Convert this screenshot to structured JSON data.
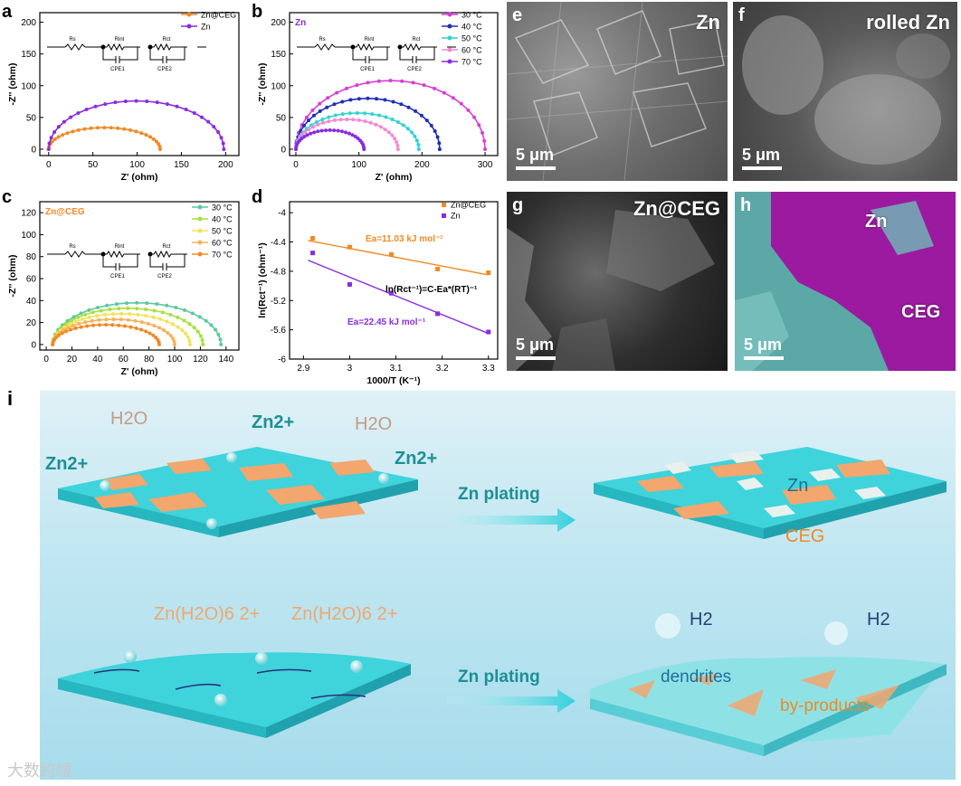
{
  "panels": {
    "a": {
      "label": "a",
      "chart_data": {
        "type": "scatter",
        "xlabel": "Z' (ohm)",
        "ylabel": "-Z'' (ohm)",
        "xlim": [
          -10,
          215
        ],
        "ylim": [
          -10,
          215
        ],
        "xticks": [
          0,
          50,
          100,
          150,
          200
        ],
        "yticks": [
          0,
          50,
          100,
          150,
          200
        ],
        "legend_position": "top-right",
        "series": [
          {
            "name": "Zn@CEG",
            "color": "#f08a24",
            "x_start": 0,
            "x_end": 126,
            "height": 34,
            "tail_x": 127
          },
          {
            "name": "Zn",
            "color": "#8a2be2",
            "x_start": 0,
            "x_end": 198,
            "height": 76,
            "tail_x": 197
          }
        ],
        "circuit": [
          "Rs",
          "Rint",
          "Rct",
          "CPE1",
          "CPE2"
        ]
      }
    },
    "b": {
      "label": "b",
      "chart_data": {
        "type": "scatter",
        "title": "Zn",
        "xlabel": "Z' (ohm)",
        "ylabel": "-Z'' (ohm)",
        "xlim": [
          -10,
          320
        ],
        "ylim": [
          -10,
          215
        ],
        "xticks": [
          0,
          100,
          200,
          300
        ],
        "yticks": [
          0,
          50,
          100,
          150,
          200
        ],
        "legend_position": "top-right",
        "series": [
          {
            "name": "30 °C",
            "color": "#d63fd6",
            "x_start": 0,
            "x_end": 300,
            "height": 108
          },
          {
            "name": "40 °C",
            "color": "#1f2fb5",
            "x_start": 0,
            "x_end": 228,
            "height": 80
          },
          {
            "name": "50 °C",
            "color": "#2fd4d4",
            "x_start": 0,
            "x_end": 195,
            "height": 57
          },
          {
            "name": "60 °C",
            "color": "#f28ad6",
            "x_start": 0,
            "x_end": 162,
            "height": 47
          },
          {
            "name": "70 °C",
            "color": "#8a2be2",
            "x_start": 0,
            "x_end": 108,
            "height": 30
          }
        ],
        "circuit": [
          "Rs",
          "Rint",
          "Rct",
          "CPE1",
          "CPE2"
        ]
      }
    },
    "c": {
      "label": "c",
      "chart_data": {
        "type": "scatter",
        "title": "Zn@CEG",
        "xlabel": "Z' (ohm)",
        "ylabel": "-Z'' (ohm)",
        "xlim": [
          -5,
          150
        ],
        "ylim": [
          -5,
          130
        ],
        "xticks": [
          0,
          20,
          40,
          60,
          80,
          100,
          120,
          140
        ],
        "yticks": [
          0,
          20,
          40,
          60,
          80,
          100,
          120
        ],
        "legend_position": "top-right",
        "series": [
          {
            "name": "30 °C",
            "color": "#5cc9a0",
            "x_start": 5,
            "x_end": 136,
            "height": 38
          },
          {
            "name": "40 °C",
            "color": "#a8e03c",
            "x_start": 5,
            "x_end": 122,
            "height": 33
          },
          {
            "name": "50 °C",
            "color": "#f2e35a",
            "x_start": 5,
            "x_end": 112,
            "height": 28
          },
          {
            "name": "60 °C",
            "color": "#f6b25a",
            "x_start": 5,
            "x_end": 100,
            "height": 23
          },
          {
            "name": "70 °C",
            "color": "#f08a24",
            "x_start": 5,
            "x_end": 88,
            "height": 18
          }
        ],
        "circuit": [
          "Rs",
          "Rint",
          "Rct",
          "CPE1",
          "CPE2"
        ]
      }
    },
    "d": {
      "label": "d",
      "chart_data": {
        "type": "scatter",
        "xlabel": "1000/T (K⁻¹)",
        "ylabel": "ln(Rct⁻¹) (ohm⁻¹)",
        "xlim": [
          2.87,
          3.32
        ],
        "ylim": [
          -6.0,
          -3.85
        ],
        "xticks": [
          2.9,
          3.0,
          3.1,
          3.2,
          3.3
        ],
        "yticks": [
          -4.0,
          -4.4,
          -4.8,
          -5.2,
          -5.6,
          -6.0
        ],
        "legend_position": "top-right",
        "series": [
          {
            "name": "Zn@CEG",
            "color": "#f08a24",
            "x": [
              2.92,
              3.0,
              3.09,
              3.19,
              3.3
            ],
            "y": [
              -4.35,
              -4.47,
              -4.57,
              -4.77,
              -4.82
            ],
            "fit": [
              [
                2.91,
                -4.38
              ],
              [
                3.3,
                -4.85
              ]
            ]
          },
          {
            "name": "Zn",
            "color": "#8a2be2",
            "x": [
              2.92,
              3.0,
              3.09,
              3.19,
              3.3
            ],
            "y": [
              -4.55,
              -4.98,
              -5.1,
              -5.38,
              -5.63
            ],
            "fit": [
              [
                2.91,
                -4.65
              ],
              [
                3.3,
                -5.65
              ]
            ]
          }
        ],
        "annotations": [
          "Ea=11.03 kJ mol⁻¹",
          "ln(Rct⁻¹)=C-Ea*(RT)⁻¹",
          "Ea=22.45 kJ mol⁻¹"
        ]
      }
    },
    "e": {
      "label": "e",
      "name": "Zn",
      "scale": "5 μm"
    },
    "f": {
      "label": "f",
      "name": "rolled Zn",
      "scale": "5 μm"
    },
    "g": {
      "label": "g",
      "name": "Zn@CEG",
      "scale": "5 μm"
    },
    "h": {
      "label": "h",
      "zn": "Zn",
      "ceg": "CEG",
      "scale": "5 μm"
    },
    "i": {
      "label": "i",
      "top_left": {
        "h2o_1": "H2O",
        "h2o_2": "H2O",
        "zn_1": "Zn2+",
        "zn_2": "Zn2+",
        "zn_3": "Zn2+"
      },
      "arrow_top": "Zn plating",
      "top_right": {
        "zn": "Zn",
        "ceg": "CEG"
      },
      "bottom_left": {
        "complex_1": "Zn(H2O)6 2+",
        "complex_2": "Zn(H2O)6 2+"
      },
      "arrow_bottom": "Zn plating",
      "bottom_right": {
        "h2_1": "H2",
        "h2_2": "H2",
        "dendrites": "dendrites",
        "byproducts": "by-products"
      }
    }
  },
  "watermark": "大数跨境"
}
